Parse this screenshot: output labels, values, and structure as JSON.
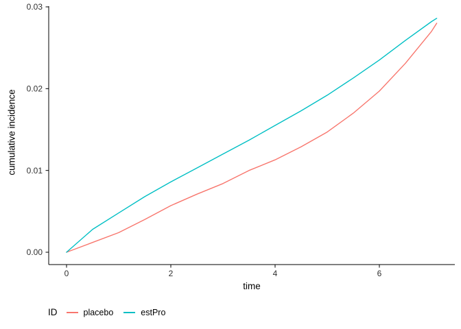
{
  "figure": {
    "background": "#ffffff",
    "axis_color": "#000000",
    "tick_label_color": "#303030"
  },
  "chart_data": {
    "type": "line",
    "title": "",
    "xlabel": "time",
    "ylabel": "cumulative incidence",
    "xlim": [
      0,
      7.1
    ],
    "ylim": [
      0,
      0.03
    ],
    "grid": false,
    "x_ticks": {
      "values": [
        0,
        2,
        4,
        6
      ],
      "labels": [
        "0",
        "2",
        "4",
        "6"
      ]
    },
    "y_ticks": {
      "values": [
        0,
        0.01,
        0.02,
        0.03
      ],
      "labels": [
        "0.00",
        "0.01",
        "0.02",
        "0.03"
      ]
    },
    "legend": {
      "title": "ID",
      "position": "bottom-left"
    },
    "x": [
      0,
      0.5,
      1,
      1.5,
      2,
      2.5,
      3,
      3.5,
      4,
      4.5,
      5,
      5.5,
      6,
      6.5,
      7,
      7.1
    ],
    "series": [
      {
        "name": "placebo",
        "color": "#F8766D",
        "values": [
          0,
          0.0012,
          0.0024,
          0.004,
          0.0057,
          0.0071,
          0.0084,
          0.01,
          0.0113,
          0.0129,
          0.0147,
          0.017,
          0.0197,
          0.0231,
          0.027,
          0.028
        ]
      },
      {
        "name": "estPro",
        "color": "#00BFC4",
        "values": [
          0,
          0.0028,
          0.0048,
          0.0068,
          0.0086,
          0.0103,
          0.012,
          0.0137,
          0.0155,
          0.0173,
          0.0192,
          0.0213,
          0.0235,
          0.0259,
          0.0282,
          0.0286
        ]
      }
    ]
  }
}
